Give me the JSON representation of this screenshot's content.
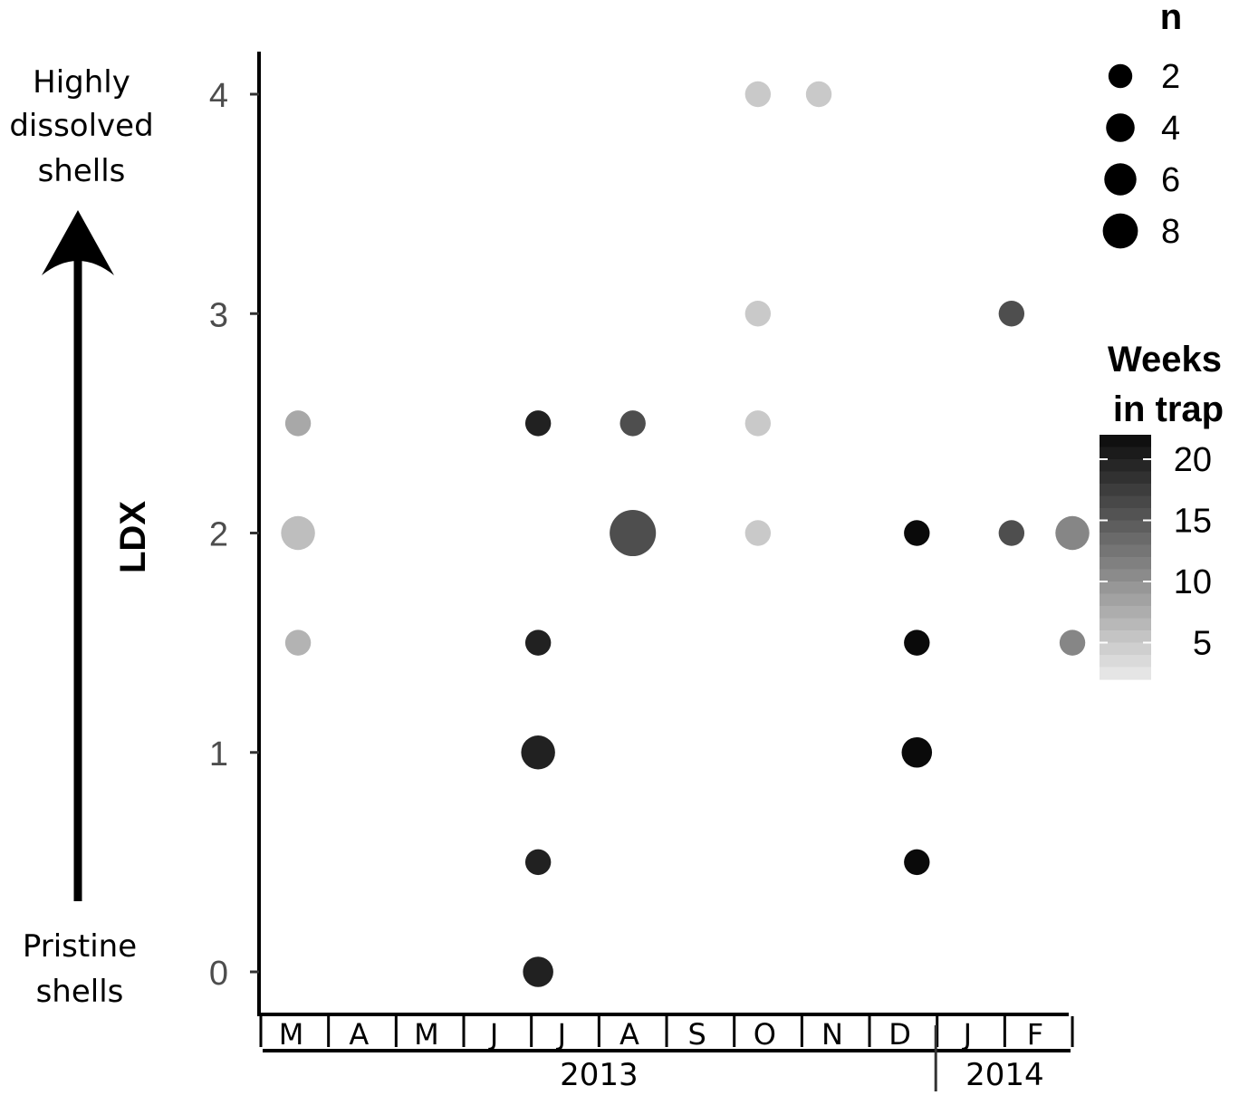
{
  "chart_data": {
    "type": "scatter",
    "ylabel": "LDX",
    "ylim": [
      0,
      4
    ],
    "yticks": [
      "0",
      "1",
      "2",
      "3",
      "4"
    ],
    "y_annotation_top": [
      "Highly",
      "dissolved",
      "shells"
    ],
    "y_annotation_bottom": [
      "Pristine",
      "shells"
    ],
    "months": [
      "M",
      "A",
      "M",
      "J",
      "J",
      "A",
      "S",
      "O",
      "N",
      "D",
      "J",
      "F"
    ],
    "years": [
      {
        "label": "2013",
        "from_month": 0,
        "to_month": 9
      },
      {
        "label": "2014",
        "from_month": 10,
        "to_month": 11
      }
    ],
    "size_legend": {
      "title": "n",
      "values": [
        2,
        4,
        6,
        8
      ]
    },
    "color_legend": {
      "title": [
        "Weeks",
        "in trap"
      ],
      "ticks": [
        5,
        10,
        15,
        20
      ],
      "range": [
        2,
        22
      ],
      "low_color": "#ebebeb",
      "high_color": "#0a0a0a"
    },
    "points": [
      {
        "month": 0,
        "x_offset": 0.05,
        "ldx": 2.5,
        "n": 1,
        "weeks": 8
      },
      {
        "month": 0,
        "x_offset": 0.05,
        "ldx": 2.0,
        "n": 3,
        "weeks": 6
      },
      {
        "month": 0,
        "x_offset": 0.05,
        "ldx": 1.5,
        "n": 1,
        "weeks": 7
      },
      {
        "month": 3,
        "x_offset": 0.6,
        "ldx": 2.5,
        "n": 1,
        "weeks": 20
      },
      {
        "month": 3,
        "x_offset": 0.6,
        "ldx": 1.5,
        "n": 1,
        "weeks": 20
      },
      {
        "month": 3,
        "x_offset": 0.6,
        "ldx": 1.0,
        "n": 3,
        "weeks": 20
      },
      {
        "month": 3,
        "x_offset": 0.6,
        "ldx": 0.5,
        "n": 1,
        "weeks": 20
      },
      {
        "month": 3,
        "x_offset": 0.6,
        "ldx": 0.0,
        "n": 2,
        "weeks": 20
      },
      {
        "month": 5,
        "x_offset": 0.0,
        "ldx": 2.5,
        "n": 1,
        "weeks": 16
      },
      {
        "month": 5,
        "x_offset": 0.0,
        "ldx": 2.0,
        "n": 8,
        "weeks": 16
      },
      {
        "month": 6,
        "x_offset": 0.85,
        "ldx": 4.0,
        "n": 1,
        "weeks": 5
      },
      {
        "month": 6,
        "x_offset": 0.85,
        "ldx": 3.0,
        "n": 1,
        "weeks": 5
      },
      {
        "month": 6,
        "x_offset": 0.85,
        "ldx": 2.5,
        "n": 1,
        "weeks": 5
      },
      {
        "month": 6,
        "x_offset": 0.85,
        "ldx": 2.0,
        "n": 1,
        "weeks": 5
      },
      {
        "month": 7,
        "x_offset": 0.75,
        "ldx": 4.0,
        "n": 1,
        "weeks": 5
      },
      {
        "month": 9,
        "x_offset": 0.2,
        "ldx": 2.0,
        "n": 1,
        "weeks": 22
      },
      {
        "month": 9,
        "x_offset": 0.2,
        "ldx": 1.5,
        "n": 1,
        "weeks": 22
      },
      {
        "month": 9,
        "x_offset": 0.2,
        "ldx": 1.0,
        "n": 2,
        "weeks": 22
      },
      {
        "month": 9,
        "x_offset": 0.2,
        "ldx": 0.5,
        "n": 1,
        "weeks": 22
      },
      {
        "month": 10,
        "x_offset": 0.6,
        "ldx": 3.0,
        "n": 1,
        "weeks": 16
      },
      {
        "month": 10,
        "x_offset": 0.6,
        "ldx": 2.0,
        "n": 1,
        "weeks": 16
      },
      {
        "month": 11,
        "x_offset": 0.5,
        "ldx": 2.0,
        "n": 3,
        "weeks": 11
      },
      {
        "month": 11,
        "x_offset": 0.5,
        "ldx": 1.5,
        "n": 1,
        "weeks": 11
      }
    ]
  }
}
